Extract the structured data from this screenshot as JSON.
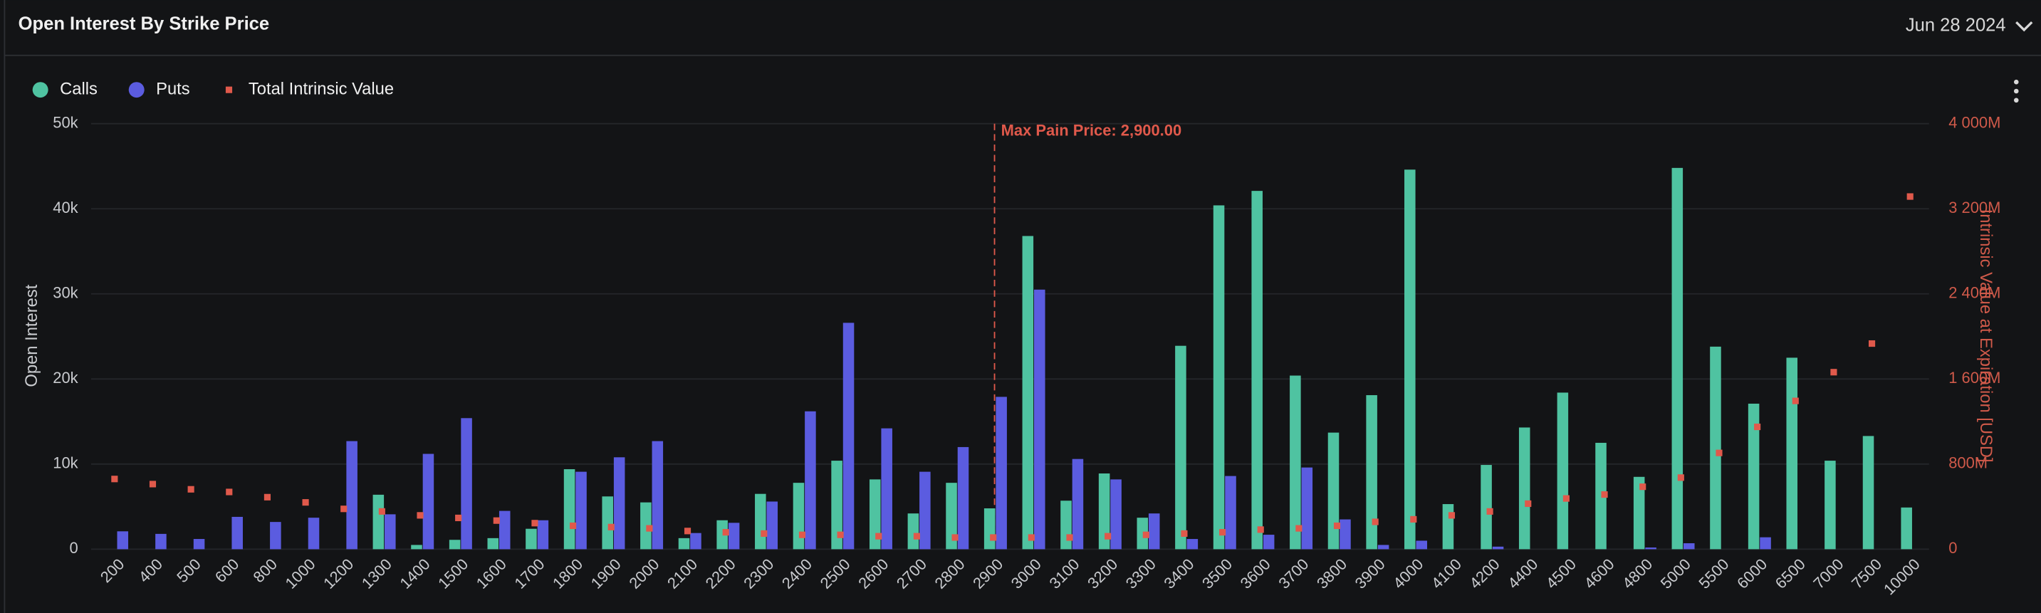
{
  "header": {
    "title": "Open Interest By Strike Price",
    "date": "Jun 28 2024"
  },
  "chart_data": {
    "type": "bar",
    "ylabel": "Open Interest",
    "y2label": "Intrinsic Value at Expiration [USD]",
    "categories": [
      "200",
      "400",
      "500",
      "600",
      "800",
      "1000",
      "1200",
      "1300",
      "1400",
      "1500",
      "1600",
      "1700",
      "1800",
      "1900",
      "2000",
      "2100",
      "2200",
      "2300",
      "2400",
      "2500",
      "2600",
      "2700",
      "2800",
      "2900",
      "3000",
      "3100",
      "3200",
      "3300",
      "3400",
      "3500",
      "3600",
      "3700",
      "3800",
      "3900",
      "4000",
      "4100",
      "4200",
      "4400",
      "4500",
      "4600",
      "4800",
      "5000",
      "5500",
      "6000",
      "6500",
      "7000",
      "7500",
      "10000"
    ],
    "series": [
      {
        "name": "Calls",
        "type": "bar",
        "color": "#4fc3a1",
        "values": [
          0,
          0,
          0,
          0,
          0,
          0,
          0,
          6400,
          500,
          1100,
          1300,
          2400,
          9400,
          6200,
          5500,
          1300,
          3400,
          6500,
          7800,
          10400,
          8200,
          4200,
          7800,
          4800,
          36800,
          5700,
          8900,
          3700,
          23900,
          40400,
          42100,
          20400,
          13700,
          18100,
          44600,
          5300,
          9900,
          14300,
          18400,
          12500,
          8500,
          44800,
          23800,
          17100,
          22500,
          10400,
          13300,
          4900
        ]
      },
      {
        "name": "Puts",
        "type": "bar",
        "color": "#5b5ce0",
        "values": [
          2100,
          1800,
          1200,
          3800,
          3200,
          3700,
          12700,
          4100,
          11200,
          15400,
          4500,
          3400,
          9100,
          10800,
          12700,
          1900,
          3100,
          5600,
          16200,
          26600,
          14200,
          9100,
          12000,
          17900,
          30500,
          10600,
          8200,
          4200,
          1200,
          8600,
          1700,
          9600,
          3500,
          500,
          1000,
          0,
          300,
          0,
          0,
          0,
          200,
          700,
          0,
          1400,
          0,
          0,
          0,
          0
        ]
      },
      {
        "name": "Total Intrinsic Value",
        "type": "scatter",
        "axis": "y2",
        "color": "#e0594b",
        "values": [
          660000000,
          612000000,
          563000000,
          538000000,
          489000000,
          440000000,
          379000000,
          355000000,
          318000000,
          294000000,
          269000000,
          245000000,
          220000000,
          208000000,
          196000000,
          171000000,
          159000000,
          147000000,
          135000000,
          135000000,
          122000000,
          122000000,
          110000000,
          110000000,
          110000000,
          110000000,
          122000000,
          135000000,
          147000000,
          159000000,
          184000000,
          196000000,
          220000000,
          257000000,
          281000000,
          318000000,
          355000000,
          428000000,
          477000000,
          514000000,
          587000000,
          673000000,
          905000000,
          1150000000,
          1394000000,
          1664000000,
          1933000000,
          3315000000
        ]
      }
    ],
    "ylim": [
      0,
      50000
    ],
    "yticks": [
      0,
      {
        "value": 10000,
        "label": "10k"
      },
      {
        "value": 20000,
        "label": "20k"
      },
      {
        "value": 30000,
        "label": "30k"
      },
      {
        "value": 40000,
        "label": "40k"
      },
      {
        "value": 50000,
        "label": "50k"
      }
    ],
    "y2lim": [
      0,
      4000000000
    ],
    "y2ticks": [
      0,
      {
        "value": 800000000,
        "label": "800M"
      },
      {
        "value": 1600000000,
        "label": "1 600M"
      },
      {
        "value": 2400000000,
        "label": "2 400M"
      },
      {
        "value": 3200000000,
        "label": "3 200M"
      },
      {
        "value": 4000000000,
        "label": "4 000M"
      }
    ],
    "grid": true,
    "annotation": {
      "label": "Max Pain Price: 2,900.00",
      "category": "2900",
      "color": "#e0594b"
    }
  }
}
